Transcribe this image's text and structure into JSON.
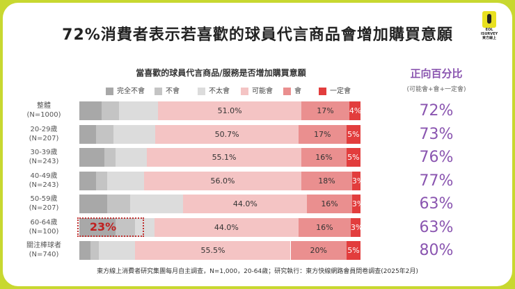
{
  "main_title": "72%消費者表示若喜歡的球員代言商品會增加購買意願",
  "logo": {
    "line1": "EOL",
    "line2": "ISURVEY",
    "line3": "東方線上"
  },
  "colors": {
    "完全不會": "#a8a8a8",
    "不會": "#c4c4c4",
    "不太會": "#dcdcdc",
    "可能會": "#f4c4c4",
    "會": "#ea8f8f",
    "一定會": "#e23d3d",
    "accent": "#8a55b0",
    "frame": "#c8d830"
  },
  "right_panel": {
    "heading": "正向百分比",
    "subheading": "(可能會+會+一定會)"
  },
  "highlight": {
    "label": "23%"
  },
  "footer": "東方線上消費者研究集團每月自主調查，N=1,000，20-64歲；研究執行：東方快線網路會員問卷調查(2025年2月)",
  "chart_data": {
    "type": "bar",
    "stacked": true,
    "orientation": "horizontal",
    "title": "當喜歡的球員代言商品/服務是否增加購買意願",
    "legend_position": "top",
    "categories": [
      "整體\n(N=1000)",
      "20-29歲\n(N=207)",
      "30-39歲\n(N=243)",
      "40-49歲\n(N=243)",
      "50-59歲\n(N=207)",
      "60-64歲\n(N=100)",
      "關注棒球者\n(N=740)"
    ],
    "series": [
      {
        "name": "完全不會",
        "values": [
          8,
          6,
          9,
          6,
          10,
          11,
          4
        ]
      },
      {
        "name": "不會",
        "values": [
          6,
          6,
          4,
          4,
          8,
          6,
          3
        ]
      },
      {
        "name": "不太會",
        "values": [
          14,
          15,
          11,
          13,
          19,
          6,
          13
        ]
      },
      {
        "name": "可能會",
        "values": [
          51.0,
          50.7,
          55.1,
          56.0,
          44.0,
          44.0,
          55.5
        ],
        "labels": [
          "51.0%",
          "50.7%",
          "55.1%",
          "56.0%",
          "44.0%",
          "44.0%",
          "55.5%"
        ]
      },
      {
        "name": "會",
        "values": [
          17,
          17,
          16,
          18,
          16,
          16,
          20
        ],
        "labels": [
          "17%",
          "17%",
          "16%",
          "18%",
          "16%",
          "16%",
          "20%"
        ]
      },
      {
        "name": "一定會",
        "values": [
          4,
          5,
          5,
          3,
          3,
          3,
          5
        ],
        "labels": [
          "4%",
          "5%",
          "5%",
          "3%",
          "3%",
          "3%",
          "5%"
        ]
      }
    ],
    "positive_pct": [
      "72%",
      "73%",
      "76%",
      "77%",
      "63%",
      "63%",
      "80%"
    ]
  }
}
